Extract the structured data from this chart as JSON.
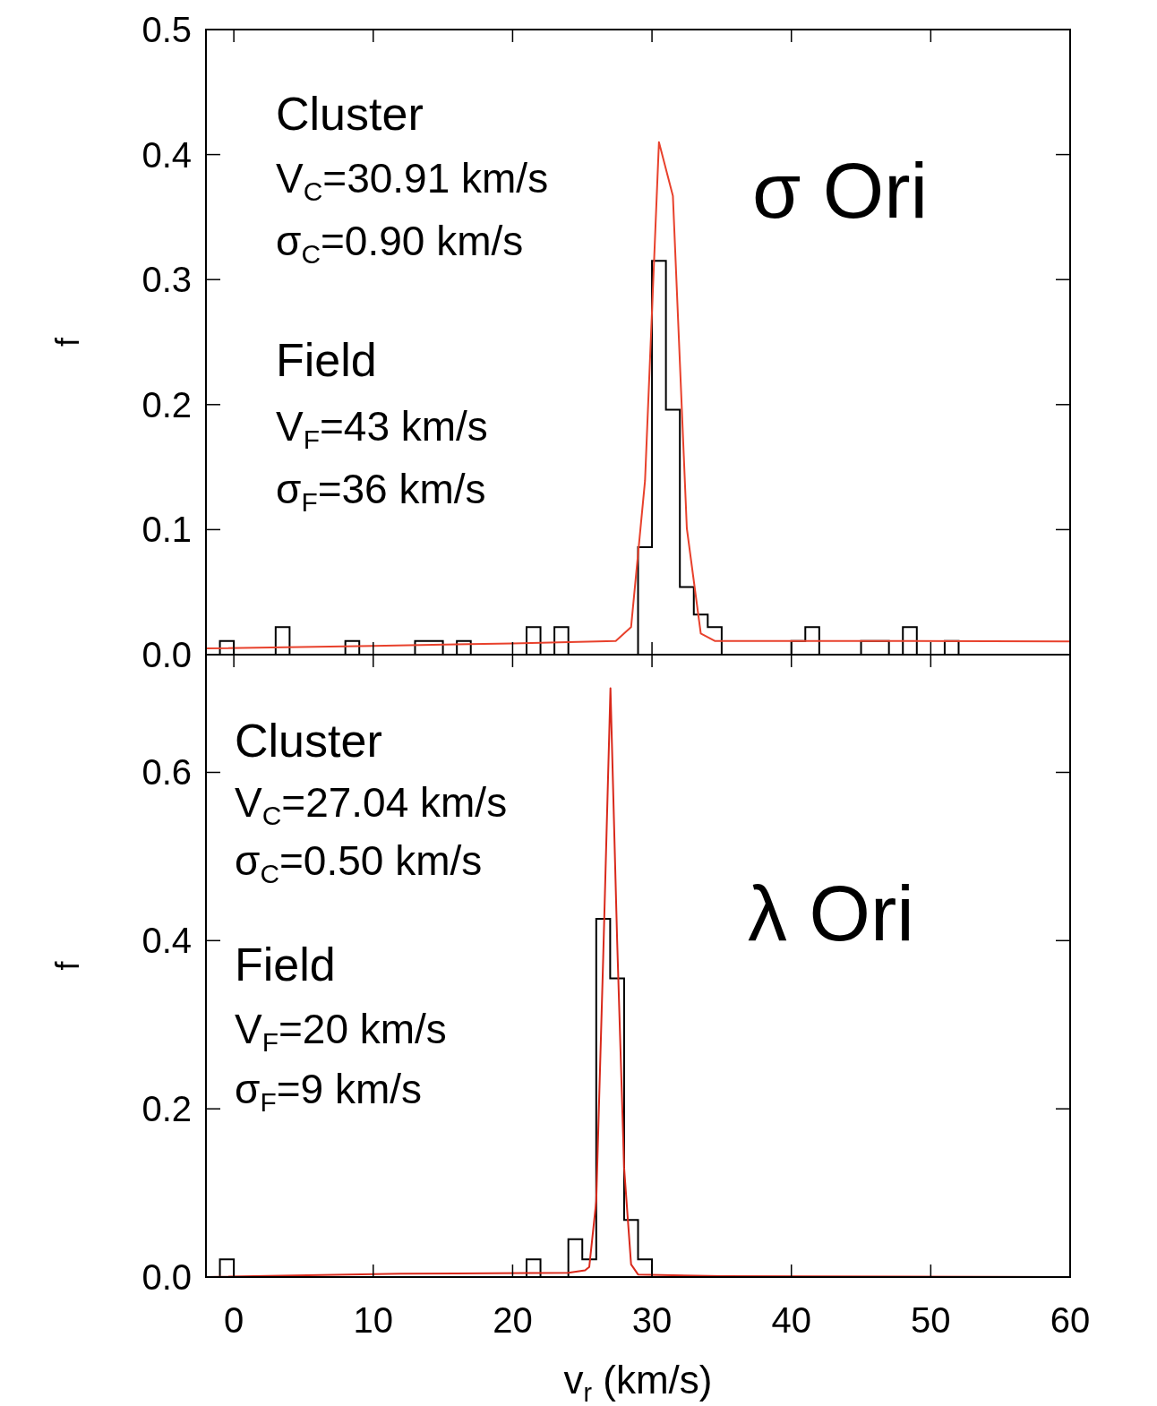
{
  "chart_data": [
    {
      "type": "histogram",
      "ylabel": "f",
      "xlim": [
        -2,
        60
      ],
      "xticks": [
        0,
        10,
        20,
        30,
        40,
        50,
        60
      ],
      "ylim": [
        0,
        0.5
      ],
      "yticks": [
        {
          "value": 0,
          "label": "0.0"
        },
        {
          "value": 0.1,
          "label": "0.1"
        },
        {
          "value": 0.2,
          "label": "0.2"
        },
        {
          "value": 0.3,
          "label": "0.3"
        },
        {
          "value": 0.4,
          "label": "0.4"
        },
        {
          "value": 0.5,
          "label": "0.5"
        }
      ],
      "tick_labels": "y",
      "grid": false,
      "annotations": [
        "Cluster",
        "V$_{C}$=30.91 km/s",
        "σ$_{C}$=0.90 km/s",
        "Field",
        "V$_{F}$=43 km/s",
        "σ$_{F}$=36 km/s",
        "σ Ori"
      ],
      "series": [
        {
          "type": "histogram",
          "color": "#000000",
          "bins": [
            -1,
            0,
            1,
            2,
            3,
            4,
            5,
            6,
            7,
            8,
            9,
            10,
            11,
            12,
            13,
            14,
            15,
            16,
            17,
            18,
            19,
            20,
            21,
            22,
            23,
            24,
            25,
            26,
            27,
            28,
            29,
            30,
            31,
            32,
            33,
            34,
            35,
            36,
            37,
            38,
            39,
            40,
            41,
            42,
            43,
            44,
            45,
            46,
            47,
            48,
            49,
            50,
            51,
            52
          ],
          "values": [
            0.011,
            0,
            0,
            0,
            0.022,
            0,
            0,
            0,
            0,
            0.011,
            0,
            0,
            0,
            0,
            0.011,
            0.011,
            0,
            0.011,
            0,
            0,
            0,
            0,
            0.022,
            0,
            0.022,
            0,
            0,
            0,
            0,
            0,
            0.086,
            0.315,
            0.196,
            0.054,
            0.032,
            0.022,
            0,
            0,
            0,
            0,
            0,
            0.011,
            0.022,
            0,
            0,
            0,
            0.011,
            0.011,
            0,
            0.022,
            0,
            0,
            0.011
          ]
        },
        {
          "type": "line",
          "color": "#e8412c",
          "x": [
            -2,
            10,
            20,
            27.4,
            28.5,
            29.5,
            30.5,
            31.5,
            32.5,
            33.5,
            34.5,
            45,
            60
          ],
          "values": [
            0.005,
            0.007,
            0.009,
            0.011,
            0.022,
            0.139,
            0.41,
            0.367,
            0.101,
            0.017,
            0.011,
            0.011,
            0.0105
          ]
        }
      ]
    },
    {
      "type": "histogram",
      "ylabel": "f",
      "xlabel": "v$_{r}$ (km/s)",
      "xlim": [
        -2,
        60
      ],
      "xticks": [
        0,
        10,
        20,
        30,
        40,
        50,
        60
      ],
      "ylim": [
        0,
        0.74
      ],
      "yticks": [
        {
          "value": 0,
          "label": "0.0"
        },
        {
          "value": 0.2,
          "label": "0.2"
        },
        {
          "value": 0.4,
          "label": "0.4"
        },
        {
          "value": 0.6,
          "label": "0.6"
        }
      ],
      "grid": false,
      "annotations": [
        "Cluster",
        "V$_{C}$=27.04 km/s",
        "σ$_{C}$=0.50 km/s",
        "Field",
        "V$_{F}$=20 km/s",
        "σ$_{F}$=9 km/s",
        "λ Ori"
      ],
      "series": [
        {
          "type": "histogram",
          "color": "#000000",
          "bins": [
            -1,
            0,
            1,
            2,
            3,
            4,
            5,
            6,
            7,
            8,
            9,
            10,
            11,
            12,
            13,
            14,
            15,
            16,
            17,
            18,
            19,
            20,
            21,
            22,
            23,
            24,
            25,
            26,
            27,
            28,
            29,
            30
          ],
          "values": [
            0.021,
            0,
            0,
            0,
            0,
            0,
            0,
            0,
            0,
            0,
            0,
            0,
            0,
            0,
            0,
            0,
            0,
            0,
            0,
            0,
            0,
            0,
            0.021,
            0,
            0,
            0.045,
            0.021,
            0.426,
            0.355,
            0.068,
            0.021
          ]
        },
        {
          "type": "line",
          "color": "#d9291b",
          "x": [
            -2,
            12,
            24,
            25.2,
            25.5,
            26,
            26.5,
            27.02,
            27.5,
            28,
            28.5,
            29,
            35,
            60
          ],
          "values": [
            0,
            0.004,
            0.005,
            0.008,
            0.012,
            0.09,
            0.38,
            0.7,
            0.4,
            0.13,
            0.015,
            0.003,
            0.001,
            0
          ]
        }
      ]
    }
  ]
}
